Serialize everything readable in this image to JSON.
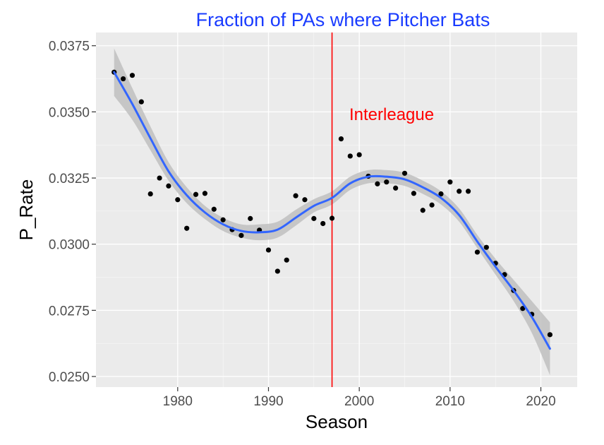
{
  "chart_data": {
    "type": "scatter",
    "title": "Fraction of PAs where Pitcher Bats",
    "xlabel": "Season",
    "ylabel": "P_Rate",
    "xlim": [
      1971,
      2024
    ],
    "ylim": [
      0.0246,
      0.038
    ],
    "x_ticks": [
      1980,
      1990,
      2000,
      2010,
      2020
    ],
    "x_tick_labels": [
      "1980",
      "1990",
      "2000",
      "2010",
      "2020"
    ],
    "y_ticks": [
      0.025,
      0.0275,
      0.03,
      0.0325,
      0.035,
      0.0375
    ],
    "y_tick_labels": [
      "0.0250",
      "0.0275",
      "0.0300",
      "0.0325",
      "0.0350",
      "0.0375"
    ],
    "grid": true,
    "series": [
      {
        "kind": "points",
        "color": "#000000",
        "x": [
          1973,
          1974,
          1975,
          1976,
          1977,
          1978,
          1979,
          1980,
          1981,
          1982,
          1983,
          1984,
          1985,
          1986,
          1987,
          1988,
          1989,
          1990,
          1991,
          1992,
          1993,
          1994,
          1995,
          1996,
          1997,
          1998,
          1999,
          2000,
          2001,
          2002,
          2003,
          2004,
          2005,
          2006,
          2007,
          2008,
          2009,
          2010,
          2011,
          2012,
          2013,
          2014,
          2015,
          2016,
          2017,
          2018,
          2019,
          2021
        ],
        "y": [
          0.0365,
          0.03625,
          0.03638,
          0.03538,
          0.0319,
          0.0325,
          0.0322,
          0.03168,
          0.0306,
          0.03188,
          0.03192,
          0.03132,
          0.03092,
          0.03055,
          0.03033,
          0.03097,
          0.03053,
          0.02978,
          0.02898,
          0.0294,
          0.03183,
          0.03168,
          0.03097,
          0.03078,
          0.03098,
          0.03398,
          0.03333,
          0.03338,
          0.03257,
          0.03228,
          0.03235,
          0.03212,
          0.03268,
          0.03192,
          0.03128,
          0.03148,
          0.0319,
          0.03235,
          0.032,
          0.032,
          0.0297,
          0.02988,
          0.02928,
          0.02885,
          0.02825,
          0.02757,
          0.02735,
          0.02658
        ]
      },
      {
        "kind": "smooth",
        "color": "#3366FF",
        "band_color": "#bfbfbf",
        "x": [
          1973,
          1975,
          1977,
          1979,
          1981,
          1983,
          1985,
          1987,
          1989,
          1991,
          1993,
          1995,
          1997,
          1999,
          2001,
          2003,
          2005,
          2007,
          2009,
          2011,
          2013,
          2015,
          2017,
          2019,
          2021
        ],
        "y": [
          0.0365,
          0.0353,
          0.034,
          0.03275,
          0.03185,
          0.0312,
          0.03075,
          0.0305,
          0.03045,
          0.03055,
          0.031,
          0.03145,
          0.03175,
          0.0323,
          0.03255,
          0.03255,
          0.03245,
          0.03215,
          0.03175,
          0.0311,
          0.0301,
          0.02915,
          0.02825,
          0.02725,
          0.02605
        ],
        "lower": [
          0.0356,
          0.0347,
          0.03355,
          0.0324,
          0.03155,
          0.03095,
          0.0305,
          0.03025,
          0.03015,
          0.03025,
          0.0307,
          0.0312,
          0.0315,
          0.03205,
          0.0323,
          0.0323,
          0.0322,
          0.0319,
          0.0315,
          0.03085,
          0.02985,
          0.02885,
          0.02785,
          0.02665,
          0.02505
        ],
        "upper": [
          0.0374,
          0.0359,
          0.03445,
          0.0331,
          0.03215,
          0.03145,
          0.031,
          0.03075,
          0.03075,
          0.03085,
          0.0313,
          0.0317,
          0.032,
          0.03255,
          0.0328,
          0.0328,
          0.0327,
          0.0324,
          0.032,
          0.03135,
          0.03035,
          0.02945,
          0.02865,
          0.02785,
          0.02705
        ]
      }
    ],
    "reference_line": {
      "x": 1997,
      "color": "#FF0000",
      "label": "Interleague"
    }
  },
  "colors": {
    "title": "#1a3cff",
    "panel_background": "#ebebeb",
    "grid_major": "#ffffff"
  }
}
